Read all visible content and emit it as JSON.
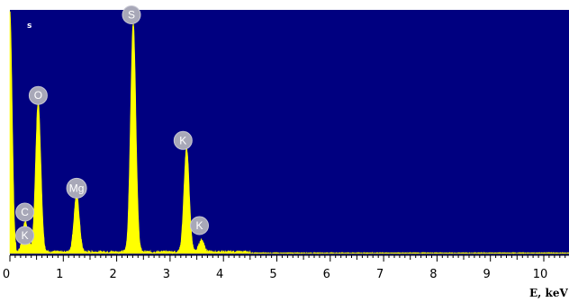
{
  "chart_data": {
    "type": "area",
    "x_unit_label": "E, keV",
    "y_label_fragment": "s",
    "xlim": [
      0,
      10.5
    ],
    "ylim": [
      0,
      100
    ],
    "x_ticks": [
      0,
      1,
      2,
      3,
      4,
      5,
      6,
      7,
      8,
      9,
      10
    ],
    "x_tick_labels": [
      "0",
      "1",
      "2",
      "3",
      "4",
      "5",
      "6",
      "7",
      "8",
      "9",
      "10"
    ],
    "spectrum_color": "#ffff00",
    "background_color": "#000080",
    "peaks": [
      {
        "element": "C",
        "energy": 0.28,
        "intensity": 9
      },
      {
        "element": "K",
        "energy": 0.3,
        "intensity": 4
      },
      {
        "element": "O",
        "energy": 0.53,
        "intensity": 62
      },
      {
        "element": "Mg",
        "energy": 1.25,
        "intensity": 24
      },
      {
        "element": "S",
        "energy": 2.31,
        "intensity": 95
      },
      {
        "element": "K",
        "energy": 3.31,
        "intensity": 43
      },
      {
        "element": "K",
        "energy": 3.59,
        "intensity": 5
      }
    ]
  }
}
